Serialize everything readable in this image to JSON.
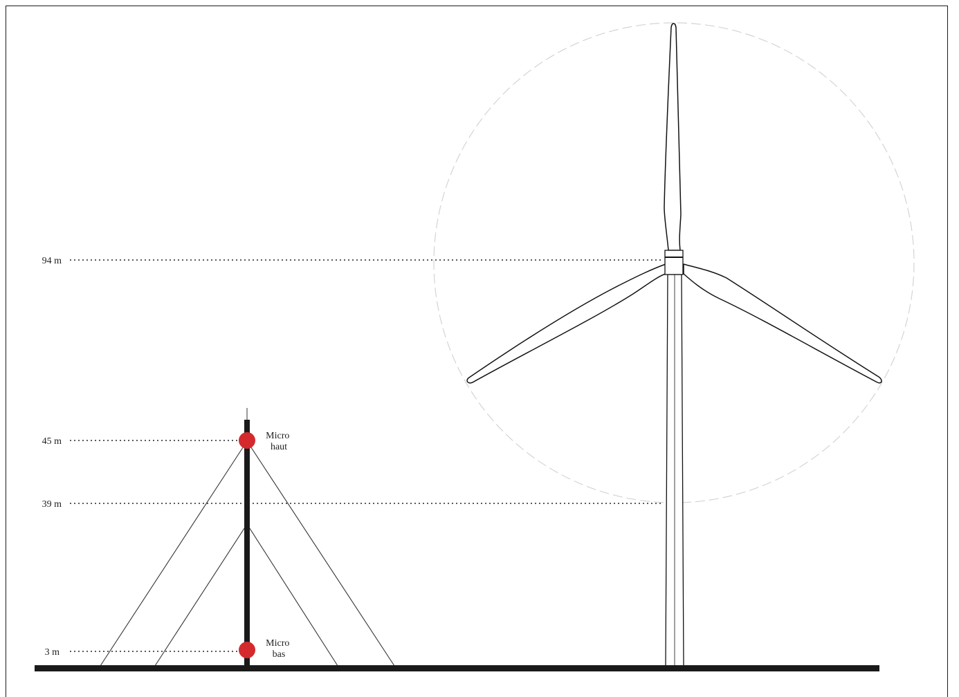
{
  "heights": {
    "hub": "94 m",
    "mic_high": "45 m",
    "blade_bottom": "39 m",
    "mic_low": "3 m"
  },
  "microphones": {
    "high": {
      "line1": "Micro",
      "line2": "haut"
    },
    "low": {
      "line1": "Micro",
      "line2": "bas"
    }
  },
  "colors": {
    "microphone": "#d42a2e",
    "mast": "#1a1a1a",
    "ground": "#1a1a1a",
    "rotor_circle": "#d0d0d0"
  }
}
